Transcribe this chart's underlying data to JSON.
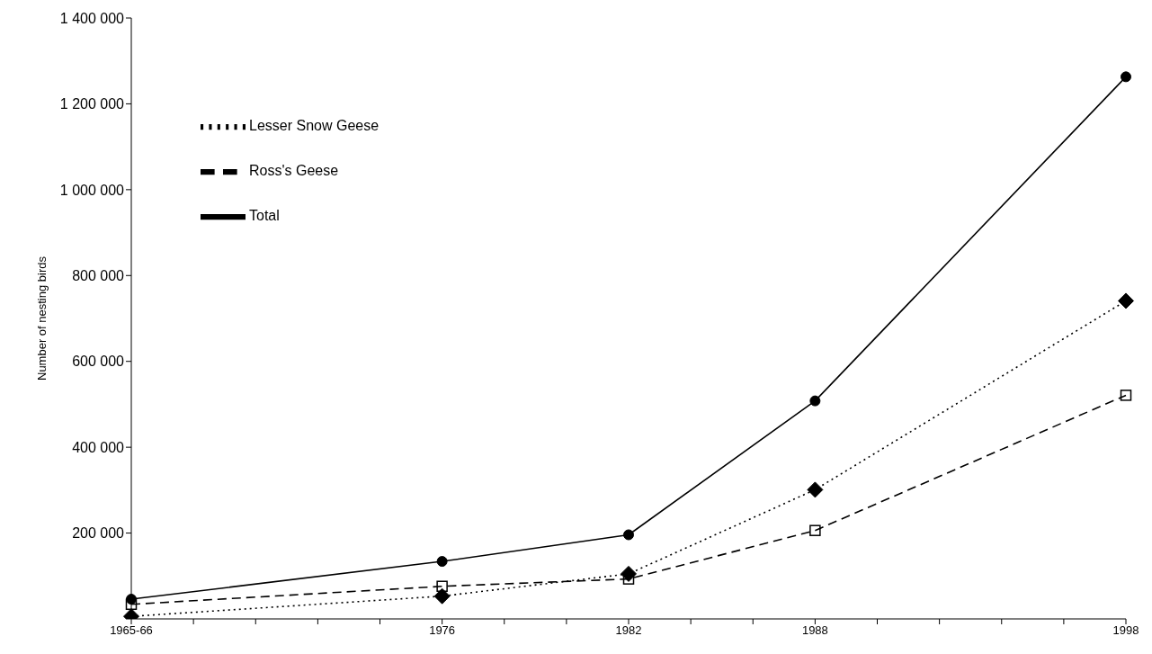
{
  "chart_data": {
    "type": "line",
    "ylabel": "Number of nesting birds",
    "categories": [
      "1965-66",
      null,
      null,
      null,
      null,
      "1976",
      null,
      null,
      "1982",
      null,
      null,
      "1988",
      null,
      null,
      null,
      null,
      "1998"
    ],
    "series": [
      {
        "name": "Lesser Snow Geese",
        "color": "#000000",
        "marker": "diamond",
        "line_style": "dotted",
        "values": [
          6000,
          null,
          null,
          null,
          null,
          53000,
          null,
          null,
          105000,
          null,
          null,
          301000,
          null,
          null,
          null,
          null,
          741000
        ]
      },
      {
        "name": "Ross's Geese",
        "color": "#000000",
        "marker": "square",
        "line_style": "dashed",
        "values": [
          34000,
          null,
          null,
          null,
          null,
          76000,
          null,
          null,
          93000,
          null,
          null,
          206000,
          null,
          null,
          null,
          null,
          521000
        ]
      },
      {
        "name": "Total",
        "color": "#000000",
        "marker": "circle",
        "line_style": "solid",
        "values": [
          46000,
          null,
          null,
          null,
          null,
          134000,
          null,
          null,
          196000,
          null,
          null,
          508000,
          null,
          null,
          null,
          null,
          1263000
        ]
      }
    ],
    "ylim": [
      0,
      1400000
    ],
    "yticks": [
      {
        "value": 0,
        "label": null
      },
      {
        "value": 200000,
        "label": "200 000"
      },
      {
        "value": 400000,
        "label": "400 000"
      },
      {
        "value": 600000,
        "label": "600 000"
      },
      {
        "value": 800000,
        "label": "800 000"
      },
      {
        "value": 1000000,
        "label": "1 000 000"
      },
      {
        "value": 1200000,
        "label": "1 200 000"
      },
      {
        "value": 1400000,
        "label": "1 400 000"
      }
    ],
    "legend": "top left",
    "grid": false
  }
}
